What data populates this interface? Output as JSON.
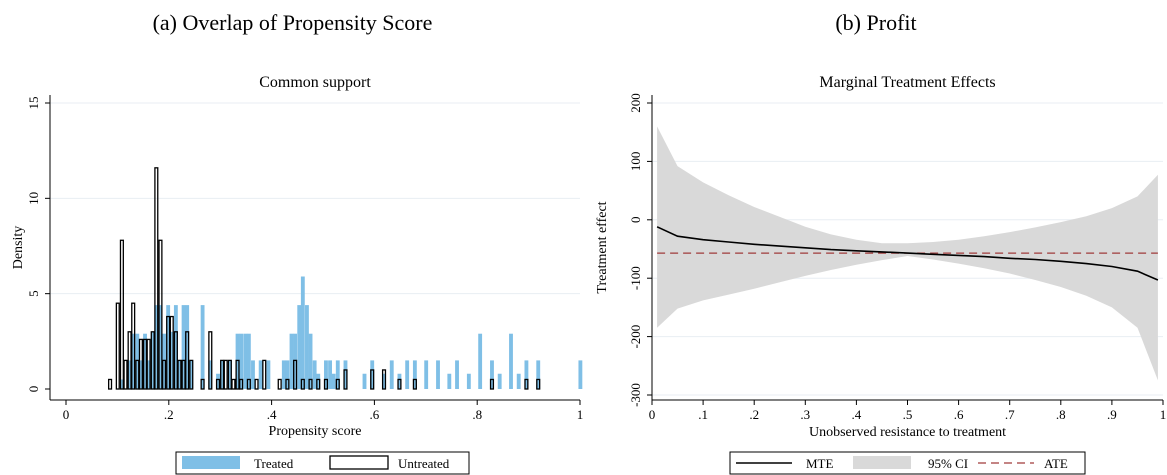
{
  "headings": {
    "left": "(a) Overlap of Propensity Score",
    "right": "(b) Profit"
  },
  "colors": {
    "treated_fill": "#7fbfe6",
    "ci_fill": "#d9d9d9",
    "ate_line": "#a03a3a",
    "grid": "#e8eef3"
  },
  "chart_data": [
    {
      "type": "bar",
      "title": "Common support",
      "xlabel": "Propensity score",
      "ylabel": "Density",
      "xlim": [
        0,
        1
      ],
      "ylim": [
        0,
        15
      ],
      "xticks": [
        0,
        0.2,
        0.4,
        0.6,
        0.8,
        1
      ],
      "xtick_labels": [
        "0",
        ".2",
        ".4",
        ".6",
        ".8",
        "1"
      ],
      "yticks": [
        0,
        5,
        10,
        15
      ],
      "ytick_labels": [
        "0",
        "5",
        "10",
        "15"
      ],
      "grid": "horizontal",
      "legend_position": "bottom",
      "bin_width": 0.0075,
      "series": [
        {
          "name": "Treated",
          "style": "filled",
          "bins": [
            [
              0.105,
              0.5
            ],
            [
              0.12,
              1.5
            ],
            [
              0.127,
              2.9
            ],
            [
              0.135,
              2.9
            ],
            [
              0.142,
              1.5
            ],
            [
              0.15,
              2.9
            ],
            [
              0.157,
              1.5
            ],
            [
              0.165,
              3.0
            ],
            [
              0.172,
              4.4
            ],
            [
              0.18,
              4.4
            ],
            [
              0.187,
              2.9
            ],
            [
              0.195,
              4.4
            ],
            [
              0.202,
              3.0
            ],
            [
              0.21,
              4.4
            ],
            [
              0.217,
              1.5
            ],
            [
              0.225,
              4.4
            ],
            [
              0.232,
              4.4
            ],
            [
              0.24,
              1.5
            ],
            [
              0.262,
              4.4
            ],
            [
              0.277,
              1.5
            ],
            [
              0.292,
              0.8
            ],
            [
              0.3,
              1.5
            ],
            [
              0.315,
              1.5
            ],
            [
              0.33,
              2.9
            ],
            [
              0.337,
              2.9
            ],
            [
              0.345,
              2.9
            ],
            [
              0.352,
              2.9
            ],
            [
              0.36,
              1.5
            ],
            [
              0.375,
              1.5
            ],
            [
              0.39,
              1.5
            ],
            [
              0.42,
              1.5
            ],
            [
              0.427,
              1.5
            ],
            [
              0.435,
              2.9
            ],
            [
              0.442,
              2.9
            ],
            [
              0.45,
              4.4
            ],
            [
              0.457,
              5.9
            ],
            [
              0.465,
              4.4
            ],
            [
              0.472,
              2.9
            ],
            [
              0.48,
              1.5
            ],
            [
              0.487,
              0.8
            ],
            [
              0.502,
              1.5
            ],
            [
              0.51,
              1.5
            ],
            [
              0.517,
              0.8
            ],
            [
              0.525,
              1.5
            ],
            [
              0.54,
              1.5
            ],
            [
              0.577,
              0.8
            ],
            [
              0.592,
              1.5
            ],
            [
              0.615,
              0.8
            ],
            [
              0.63,
              1.5
            ],
            [
              0.645,
              0.8
            ],
            [
              0.66,
              1.5
            ],
            [
              0.675,
              1.5
            ],
            [
              0.697,
              1.5
            ],
            [
              0.72,
              1.5
            ],
            [
              0.742,
              0.8
            ],
            [
              0.757,
              1.5
            ],
            [
              0.78,
              0.8
            ],
            [
              0.802,
              2.9
            ],
            [
              0.825,
              1.5
            ],
            [
              0.84,
              0.8
            ],
            [
              0.862,
              2.9
            ],
            [
              0.877,
              0.8
            ],
            [
              0.892,
              1.5
            ],
            [
              0.915,
              1.5
            ],
            [
              0.997,
              1.5
            ]
          ]
        },
        {
          "name": "Untreated",
          "style": "outline",
          "bins": [
            [
              0.082,
              0.5
            ],
            [
              0.097,
              4.5
            ],
            [
              0.105,
              7.8
            ],
            [
              0.112,
              1.5
            ],
            [
              0.12,
              3.0
            ],
            [
              0.127,
              4.5
            ],
            [
              0.135,
              1.5
            ],
            [
              0.142,
              2.6
            ],
            [
              0.15,
              2.6
            ],
            [
              0.157,
              2.6
            ],
            [
              0.165,
              3.0
            ],
            [
              0.172,
              11.6
            ],
            [
              0.18,
              7.8
            ],
            [
              0.187,
              1.5
            ],
            [
              0.195,
              3.8
            ],
            [
              0.202,
              3.8
            ],
            [
              0.21,
              3.0
            ],
            [
              0.217,
              1.5
            ],
            [
              0.225,
              1.5
            ],
            [
              0.232,
              3.0
            ],
            [
              0.24,
              1.5
            ],
            [
              0.262,
              0.5
            ],
            [
              0.277,
              3.0
            ],
            [
              0.292,
              0.5
            ],
            [
              0.3,
              1.5
            ],
            [
              0.307,
              1.5
            ],
            [
              0.315,
              1.5
            ],
            [
              0.322,
              0.5
            ],
            [
              0.33,
              1.5
            ],
            [
              0.337,
              0.5
            ],
            [
              0.352,
              0.5
            ],
            [
              0.367,
              0.5
            ],
            [
              0.382,
              1.5
            ],
            [
              0.412,
              0.5
            ],
            [
              0.427,
              0.5
            ],
            [
              0.442,
              1.5
            ],
            [
              0.457,
              0.5
            ],
            [
              0.472,
              0.5
            ],
            [
              0.487,
              0.5
            ],
            [
              0.502,
              0.5
            ],
            [
              0.525,
              0.5
            ],
            [
              0.54,
              1.0
            ],
            [
              0.592,
              1.0
            ],
            [
              0.615,
              1.0
            ],
            [
              0.645,
              0.5
            ],
            [
              0.675,
              0.5
            ],
            [
              0.825,
              0.5
            ],
            [
              0.892,
              0.5
            ],
            [
              0.915,
              0.5
            ]
          ]
        }
      ],
      "legend": [
        "Treated",
        "Untreated"
      ]
    },
    {
      "type": "line",
      "title": "Marginal Treatment Effects",
      "xlabel": "Unobserved resistance to treatment",
      "ylabel": "Treatment effect",
      "xlim": [
        0,
        1
      ],
      "ylim": [
        -300,
        200
      ],
      "xticks": [
        0,
        0.1,
        0.2,
        0.3,
        0.4,
        0.5,
        0.6,
        0.7,
        0.8,
        0.9,
        1
      ],
      "xtick_labels": [
        "0",
        ".1",
        ".2",
        ".3",
        ".4",
        ".5",
        ".6",
        ".7",
        ".8",
        ".9",
        "1"
      ],
      "yticks": [
        -300,
        -200,
        -100,
        0,
        100,
        200
      ],
      "ytick_labels": [
        "-300",
        "-200",
        "-100",
        "0",
        "100",
        "200"
      ],
      "grid": "horizontal",
      "legend_position": "bottom",
      "x": [
        0.01,
        0.05,
        0.1,
        0.15,
        0.2,
        0.25,
        0.3,
        0.35,
        0.4,
        0.45,
        0.5,
        0.55,
        0.6,
        0.65,
        0.7,
        0.75,
        0.8,
        0.85,
        0.9,
        0.95,
        0.99
      ],
      "series": [
        {
          "name": "MTE",
          "style": "solid",
          "values": [
            -12,
            -28,
            -34,
            -38,
            -42,
            -45,
            -48,
            -51,
            -53,
            -55,
            -57,
            -59,
            -61,
            -63,
            -66,
            -68,
            -71,
            -75,
            -80,
            -88,
            -103
          ]
        },
        {
          "name": "95% CI",
          "style": "band",
          "lower": [
            -185,
            -152,
            -138,
            -128,
            -118,
            -107,
            -96,
            -86,
            -77,
            -69,
            -62,
            -68,
            -75,
            -83,
            -92,
            -103,
            -115,
            -130,
            -150,
            -185,
            -275
          ],
          "upper": [
            160,
            92,
            64,
            42,
            22,
            5,
            -12,
            -25,
            -34,
            -40,
            -40,
            -38,
            -34,
            -28,
            -21,
            -13,
            -4,
            6,
            20,
            40,
            77
          ]
        },
        {
          "name": "ATE",
          "style": "dashed",
          "value": -57
        }
      ],
      "legend": [
        "MTE",
        "95% CI",
        "ATE"
      ]
    }
  ]
}
